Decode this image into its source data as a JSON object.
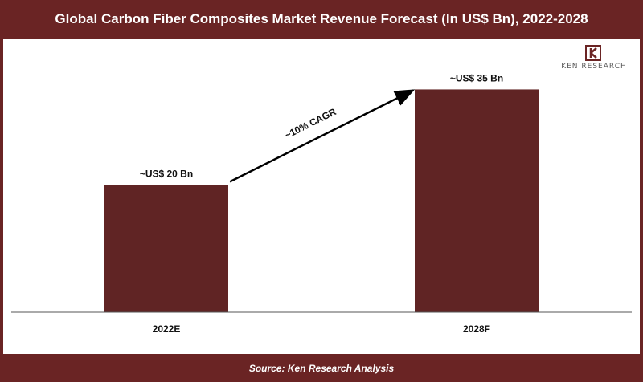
{
  "header": {
    "title": "Global Carbon Fiber Composites Market Revenue Forecast (In US$ Bn), 2022-2028"
  },
  "footer": {
    "source": "Source: Ken Research Analysis"
  },
  "logo": {
    "text": "KEN RESEARCH",
    "icon": "ken-research-k-logo-icon"
  },
  "colors": {
    "brand": "#6a2424",
    "bar": "#602424"
  },
  "chart_data": {
    "type": "bar",
    "title": "Global Carbon Fiber Composites Market Revenue Forecast (In US$ Bn), 2022-2028",
    "xlabel": "",
    "ylabel": "",
    "categories": [
      "2022E",
      "2028F"
    ],
    "values": [
      20,
      35
    ],
    "data_labels": [
      "~US$ 20 Bn",
      "~US$ 35 Bn"
    ],
    "ylim": [
      0,
      43
    ],
    "grid": false,
    "annotations": [
      {
        "text": "~10% CAGR",
        "type": "arrow",
        "from": "2022E",
        "to": "2028F"
      }
    ]
  }
}
